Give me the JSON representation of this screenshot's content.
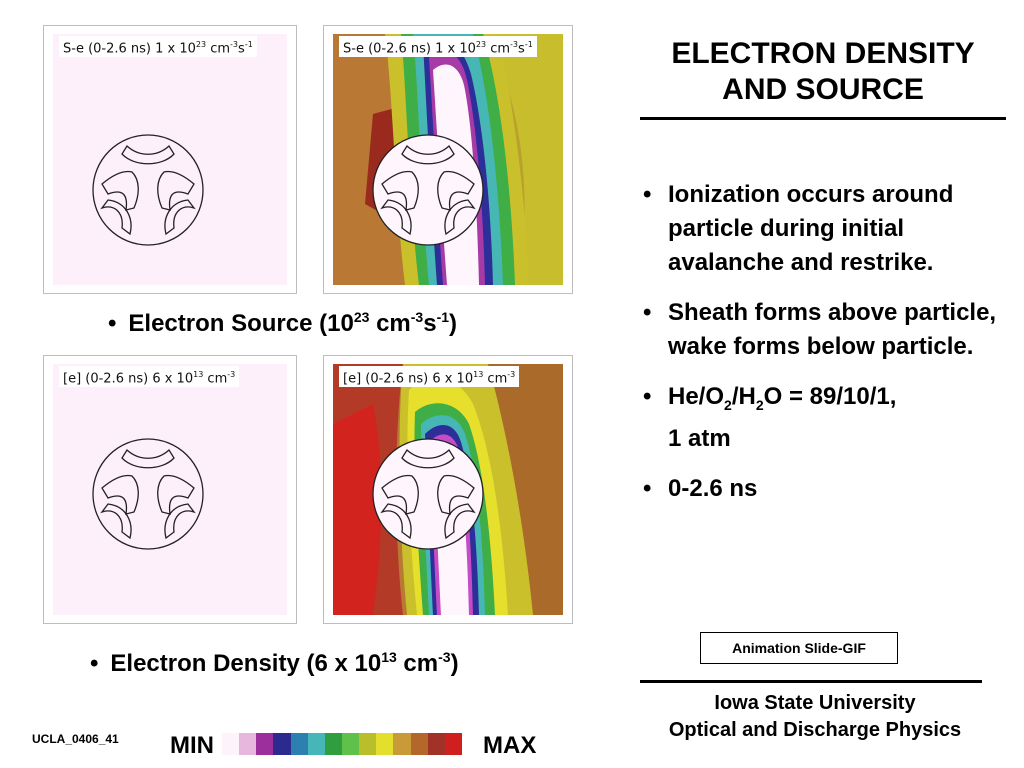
{
  "title": "ELECTRON DENSITY AND SOURCE",
  "panels": [
    {
      "label_pre": "S-e (0-2.6 ns) 1 x 10",
      "label_exp": "23",
      "label_post": " cm",
      "label_exp2": "-3",
      "label_post2": "s",
      "label_exp3": "-1"
    },
    {
      "label_pre": "S-e (0-2.6 ns) 1 x 10",
      "label_exp": "23",
      "label_post": " cm",
      "label_exp2": "-3",
      "label_post2": "s",
      "label_exp3": "-1"
    },
    {
      "label_pre": "[e] (0-2.6 ns) 6 x 10",
      "label_exp": "13",
      "label_post": " cm",
      "label_exp2": "-3"
    },
    {
      "label_pre": "[e] (0-2.6 ns) 6 x 10",
      "label_exp": "13",
      "label_post": " cm",
      "label_exp2": "-3"
    }
  ],
  "captions": {
    "source": {
      "bullet": "•",
      "pre": "Electron Source (10",
      "exp1": "23",
      "mid": " cm",
      "exp2": "-3",
      "mid2": "s",
      "exp3": "-1",
      "post": ")"
    },
    "density": {
      "bullet": "•",
      "pre": "Electron Density (6 x 10",
      "exp1": "13",
      "mid": " cm",
      "exp2": "-3",
      "post": ")"
    }
  },
  "bullets": [
    {
      "dot": "•",
      "text": "Ionization occurs around particle during initial avalanche and restrike."
    },
    {
      "dot": "•",
      "text": "Sheath forms above particle, wake forms below particle."
    },
    {
      "dot": "•",
      "p1": "He/O",
      "s1": "2",
      "p2": "/H",
      "s2": "2",
      "p3": "O = 89/10/1,",
      "p4": "1 atm"
    },
    {
      "dot": "•",
      "text": "0-2.6 ns"
    }
  ],
  "animation_box": "Animation Slide-GIF",
  "footer": {
    "line1": "Iowa State University",
    "line2": "Optical and Discharge Physics"
  },
  "slide_id": "UCLA_0406_41",
  "scale": {
    "min": "MIN",
    "max": "MAX",
    "colors": [
      "#fdf3fb",
      "#e8b7de",
      "#9c2f9c",
      "#2b2b8f",
      "#2d7fb0",
      "#47b6b8",
      "#2e9e3f",
      "#5fc04a",
      "#b9bf2a",
      "#e4df2d",
      "#c89a38",
      "#b4672a",
      "#a13227",
      "#d01f1f"
    ]
  },
  "colors": {
    "blank_bg": "#fdf0fb",
    "sim_red": "#c3201e",
    "sim_brown": "#b97833",
    "sim_yellow": "#ccbf2c",
    "sim_green": "#46b24a",
    "sim_blue": "#2d2d96",
    "sim_white": "#fff6fd"
  }
}
